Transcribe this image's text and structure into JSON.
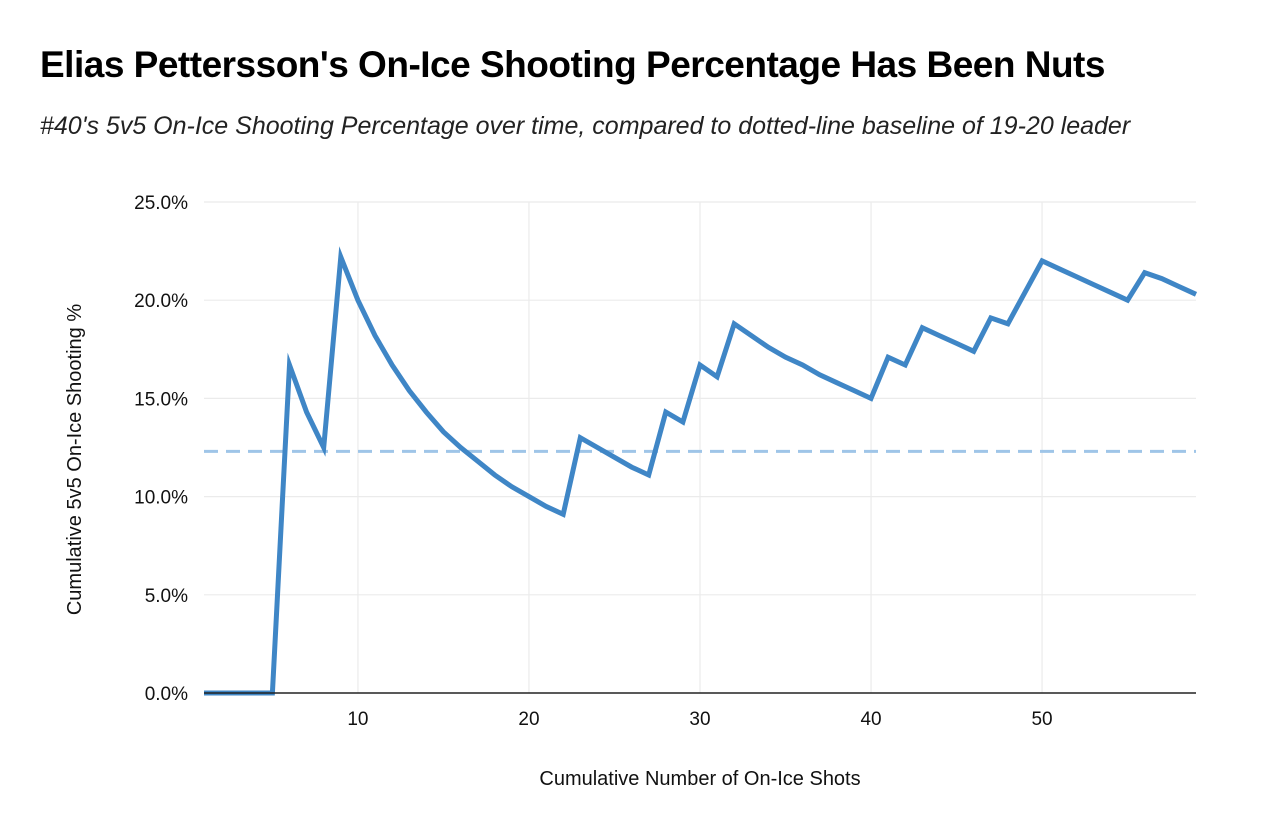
{
  "chart_data": {
    "type": "line",
    "title": "Elias Pettersson's On-Ice Shooting Percentage Has Been Nuts",
    "subtitle": "#40's 5v5 On-Ice Shooting Percentage over time, compared to dotted-line baseline of 19-20 leader",
    "xlabel": "Cumulative Number of On-Ice Shots",
    "ylabel": "Cumulative 5v5 On-Ice Shooting %",
    "xlim": [
      1,
      59
    ],
    "ylim": [
      0,
      25
    ],
    "x_ticks": [
      10,
      20,
      30,
      40,
      50
    ],
    "y_ticks": [
      0,
      5,
      10,
      15,
      20,
      25
    ],
    "y_tick_labels": [
      "0.0%",
      "5.0%",
      "10.0%",
      "15.0%",
      "20.0%",
      "25.0%"
    ],
    "grid": true,
    "line_color": "#3f86c6",
    "baseline": {
      "value": 12.3,
      "style": "dashed",
      "color": "#9fc5e8"
    },
    "series": [
      {
        "x": [
          1,
          2,
          3,
          4,
          5,
          6,
          7,
          8,
          9,
          10,
          11,
          12,
          13,
          14,
          15,
          16,
          17,
          18,
          19,
          20,
          21,
          22,
          23,
          24,
          25,
          26,
          27,
          28,
          29,
          30,
          31,
          32,
          33,
          34,
          35,
          36,
          37,
          38,
          39,
          40,
          41,
          42,
          43,
          44,
          45,
          46,
          47,
          48,
          49,
          50,
          51,
          52,
          53,
          54,
          55,
          56,
          57,
          58,
          59
        ],
        "y": [
          0,
          0,
          0,
          0,
          0,
          16.7,
          14.3,
          12.5,
          22.2,
          20.0,
          18.2,
          16.7,
          15.4,
          14.3,
          13.3,
          12.5,
          11.8,
          11.1,
          10.5,
          10.0,
          9.5,
          9.1,
          13.0,
          12.5,
          12.0,
          11.5,
          11.1,
          14.3,
          13.8,
          16.7,
          16.1,
          18.8,
          18.2,
          17.6,
          17.1,
          16.7,
          16.2,
          15.8,
          15.4,
          15.0,
          17.1,
          16.7,
          18.6,
          18.2,
          17.8,
          17.4,
          19.1,
          18.8,
          20.4,
          22.0,
          21.6,
          21.2,
          20.8,
          20.4,
          20.0,
          21.4,
          21.1,
          20.7,
          20.3
        ]
      }
    ]
  }
}
